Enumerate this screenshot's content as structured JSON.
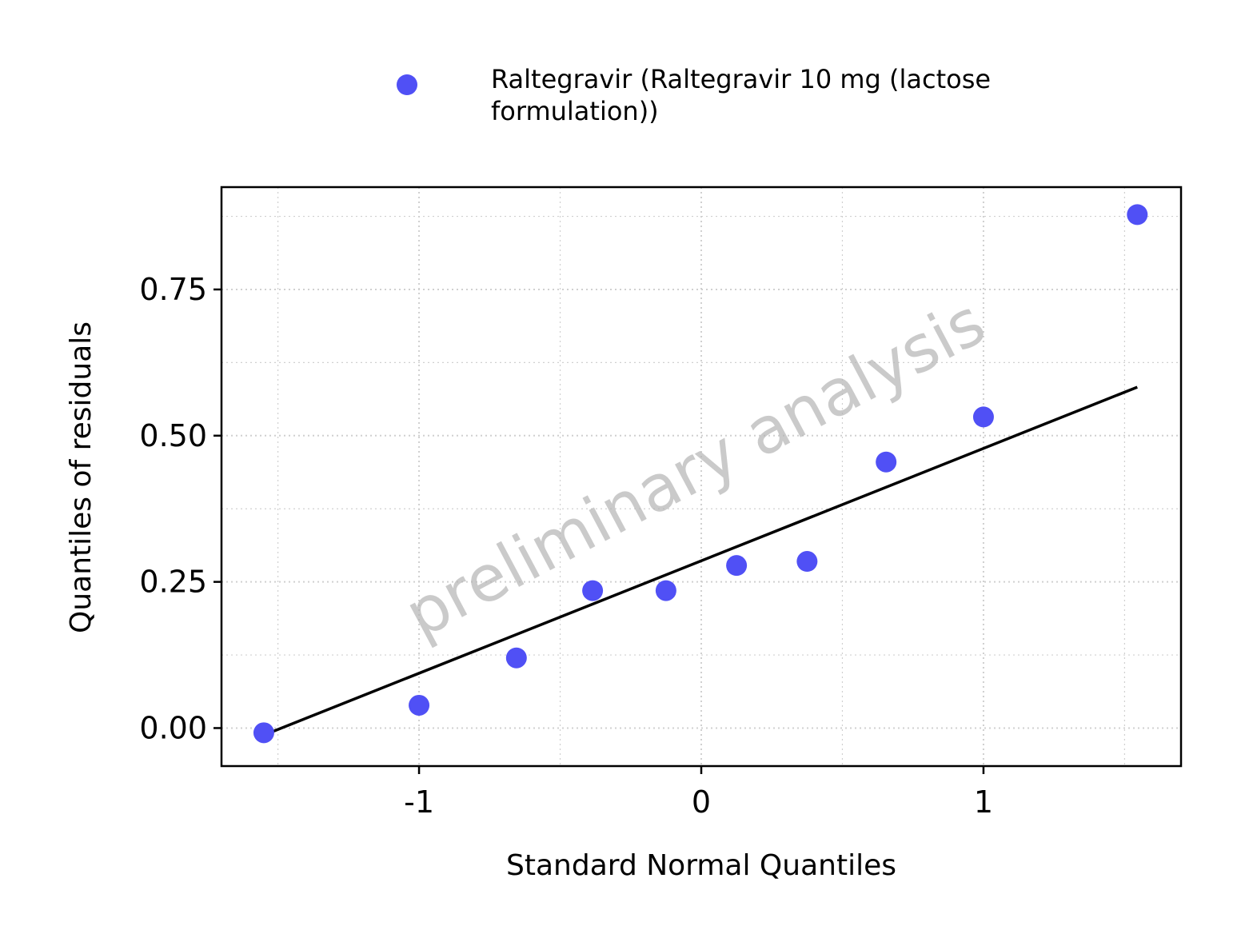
{
  "chart_data": {
    "type": "scatter",
    "xlabel": "Standard Normal Quantiles",
    "ylabel": "Quantiles of residuals",
    "watermark": "preliminary analysis",
    "xlim": [
      -1.7,
      1.7
    ],
    "ylim": [
      -0.065,
      0.925
    ],
    "x_ticks": [
      -1,
      0,
      1
    ],
    "x_tick_labels": [
      "-1",
      "0",
      "1"
    ],
    "y_ticks": [
      0.0,
      0.25,
      0.5,
      0.75
    ],
    "y_tick_labels": [
      "0.00",
      "0.25",
      "0.50",
      "0.75"
    ],
    "grid": true,
    "legend_position": "top",
    "point_color": "#5050f5",
    "series": [
      {
        "name": "Raltegravir (Raltegravir 10 mg (lactose formulation))",
        "legend_lines": [
          "Raltegravir (Raltegravir 10 mg (lactose",
          "formulation))"
        ],
        "points": [
          {
            "x": -1.55,
            "y": -0.008
          },
          {
            "x": -1.0,
            "y": 0.039
          },
          {
            "x": -0.655,
            "y": 0.12
          },
          {
            "x": -0.385,
            "y": 0.235
          },
          {
            "x": -0.125,
            "y": 0.235
          },
          {
            "x": 0.125,
            "y": 0.278
          },
          {
            "x": 0.375,
            "y": 0.285
          },
          {
            "x": 0.655,
            "y": 0.455
          },
          {
            "x": 1.0,
            "y": 0.532
          },
          {
            "x": 1.545,
            "y": 0.878
          }
        ]
      }
    ],
    "reference_line": {
      "x": [
        -1.55,
        1.545
      ],
      "y": [
        -0.012,
        0.583
      ],
      "color": "#000000"
    }
  }
}
